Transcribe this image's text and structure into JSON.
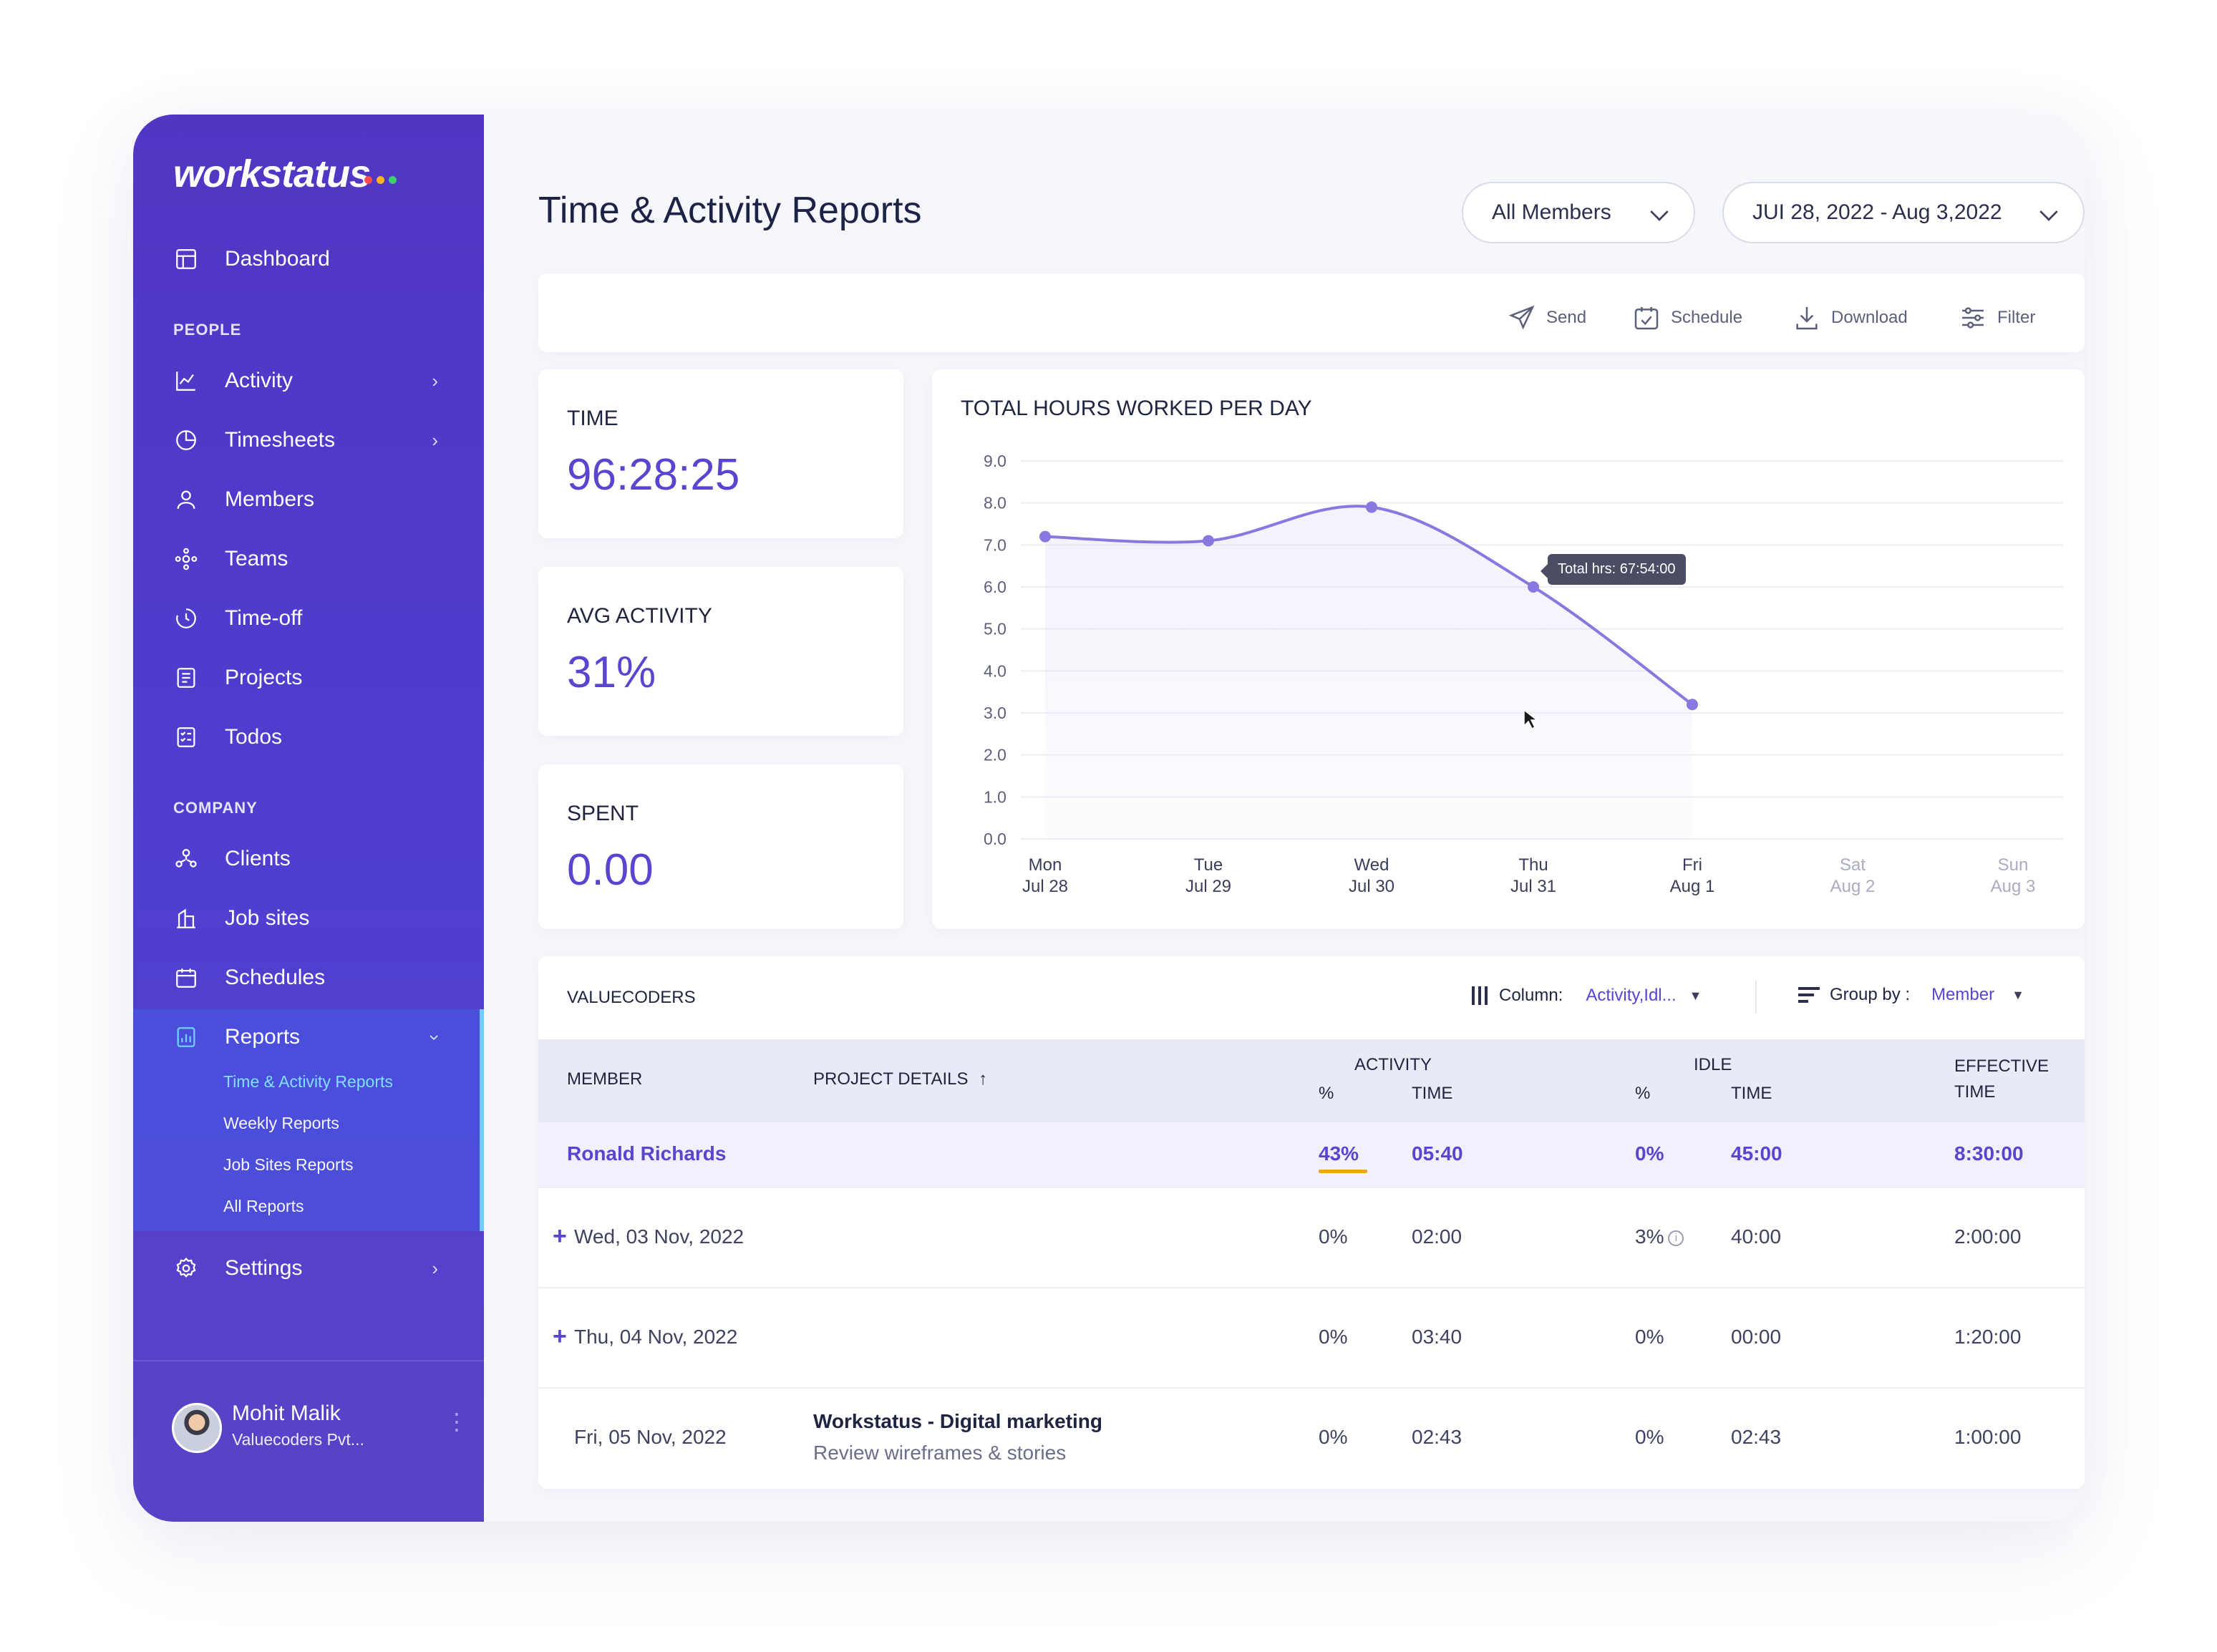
{
  "brand": {
    "name": "workstatus",
    "dot_colors": [
      "#ff4d4d",
      "#ffb21e",
      "#3ccf6e"
    ]
  },
  "sidebar": {
    "dashboard": "Dashboard",
    "people_label": "PEOPLE",
    "people_items": [
      {
        "label": "Activity",
        "icon": "activity-icon"
      },
      {
        "label": "Timesheets",
        "icon": "timesheets-icon"
      },
      {
        "label": "Members",
        "icon": "members-icon"
      },
      {
        "label": "Teams",
        "icon": "teams-icon"
      },
      {
        "label": "Time-off",
        "icon": "time-off-icon"
      },
      {
        "label": "Projects",
        "icon": "projects-icon"
      },
      {
        "label": "Todos",
        "icon": "todos-icon"
      }
    ],
    "company_label": "COMPANY",
    "company_items": [
      {
        "label": "Clients",
        "icon": "clients-icon"
      },
      {
        "label": "Job sites",
        "icon": "job-sites-icon"
      },
      {
        "label": "Schedules",
        "icon": "schedules-icon"
      }
    ],
    "reports": {
      "label": "Reports",
      "sub_items": [
        "Time & Activity Reports",
        "Weekly Reports",
        "Job Sites Reports",
        "All Reports"
      ]
    },
    "settings": "Settings",
    "user": {
      "name": "Mohit Malik",
      "org": "Valuecoders Pvt..."
    }
  },
  "header": {
    "title": "Time & Activity Reports",
    "members_filter": "All Members",
    "date_range": "JUI 28, 2022 - Aug 3,2022"
  },
  "toolbar": {
    "send": "Send",
    "schedule": "Schedule",
    "download": "Download",
    "filter": "Filter"
  },
  "stats": {
    "time": {
      "label": "TIME",
      "value": "96:28:25"
    },
    "avg_activity": {
      "label": "AVG ACTIVITY",
      "value": "31%"
    },
    "spent": {
      "label": "SPENT",
      "value": "0.00"
    }
  },
  "chart_data": {
    "type": "line",
    "title": "TOTAL HOURS WORKED PER DAY",
    "x_day": [
      "Mon",
      "Tue",
      "Wed",
      "Thu",
      "Fri",
      "Sat",
      "Sun"
    ],
    "x_date": [
      "Jul 28",
      "Jul 29",
      "Jul 30",
      "Jul 31",
      "Aug 1",
      "Aug 2",
      "Aug 3"
    ],
    "y_ticks": [
      "9.0",
      "8.0",
      "7.0",
      "6.0",
      "5.0",
      "4.0",
      "3.0",
      "2.0",
      "1.0",
      "0.0"
    ],
    "ylim": [
      0,
      9
    ],
    "values": [
      7.2,
      7.1,
      7.9,
      6.0,
      3.2,
      null,
      null
    ],
    "tooltip": "Total hrs: 67:54:00",
    "line_color": "#8a78e0",
    "grid": true
  },
  "table": {
    "title": "VALUECODERS",
    "column_label": "Column:",
    "column_value": "Activity,Idl...",
    "group_label": "Group by :",
    "group_value": "Member",
    "headers": {
      "member": "MEMBER",
      "project": "PROJECT DETAILS",
      "activity": "ACTIVITY",
      "idle": "IDLE",
      "pct": "%",
      "time": "TIME",
      "effective_1": "EFFECTIVE",
      "effective_2": "TIME"
    },
    "summary": {
      "member": "Ronald Richards",
      "activity_pct": "43%",
      "activity_time": "05:40",
      "idle_pct": "0%",
      "idle_time": "45:00",
      "effective": "8:30:00"
    },
    "rows": [
      {
        "date": "Wed, 03 Nov, 2022",
        "project": "",
        "task": "",
        "activity_pct": "0%",
        "activity_time": "02:00",
        "idle_pct": "3%",
        "idle_time": "40:00",
        "effective": "2:00:00"
      },
      {
        "date": "Thu, 04 Nov, 2022",
        "project": "",
        "task": "",
        "activity_pct": "0%",
        "activity_time": "03:40",
        "idle_pct": "0%",
        "idle_time": "00:00",
        "effective": "1:20:00"
      },
      {
        "date": "Fri, 05 Nov, 2022",
        "project": "Workstatus - Digital marketing",
        "task": "Review wireframes & stories",
        "activity_pct": "0%",
        "activity_time": "02:43",
        "idle_pct": "0%",
        "idle_time": "02:43",
        "effective": "1:00:00"
      }
    ]
  }
}
